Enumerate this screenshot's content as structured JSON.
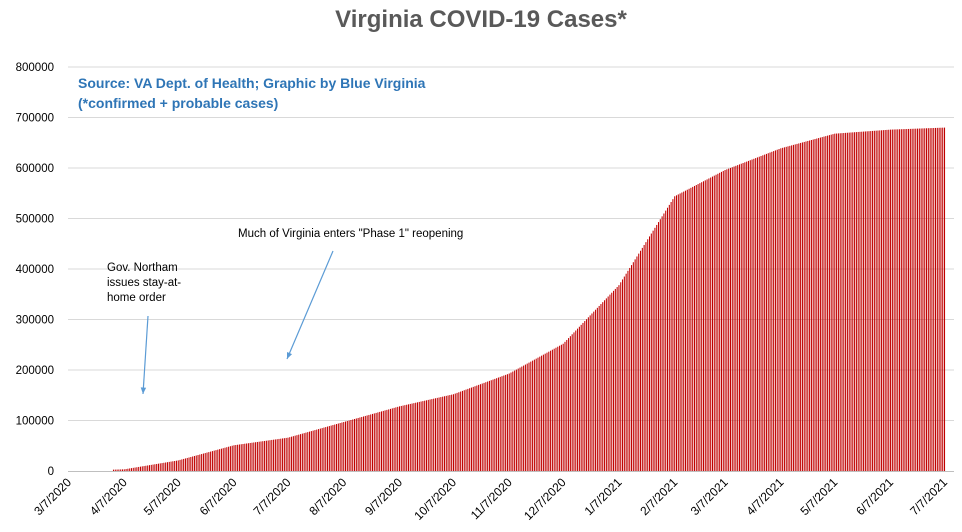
{
  "chart_data": {
    "type": "bar",
    "title": "Virginia COVID-19 Cases*",
    "source_line1": "Source: VA Dept. of Health; Graphic by Blue Virginia",
    "source_line2": "(*confirmed + probable cases)",
    "annotations": {
      "stay_at_home": [
        "Gov. Northam",
        "issues stay-at-",
        "home order"
      ],
      "phase1": "Much of Virginia enters \"Phase 1\" reopening"
    },
    "colors": {
      "bars": "#c00000",
      "title": "#595959",
      "source": "#2e75b6",
      "arrow": "#5b9bd5",
      "grid": "#d9d9d9"
    },
    "x_tick_labels": [
      "3/7/2020",
      "4/7/2020",
      "5/7/2020",
      "6/7/2020",
      "7/7/2020",
      "8/7/2020",
      "9/7/2020",
      "10/7/2020",
      "11/7/2020",
      "12/7/2020",
      "1/7/2021",
      "2/7/2021",
      "3/7/2021",
      "4/7/2021",
      "5/7/2021",
      "6/7/2021",
      "7/7/2021"
    ],
    "y_ticks": [
      0,
      100000,
      200000,
      300000,
      400000,
      500000,
      600000,
      700000,
      800000
    ],
    "ylim": [
      0,
      800000
    ],
    "x": [
      "3/7/2020",
      "4/7/2020",
      "5/7/2020",
      "6/7/2020",
      "7/7/2020",
      "8/7/2020",
      "9/7/2020",
      "10/7/2020",
      "11/7/2020",
      "12/7/2020",
      "1/7/2021",
      "2/7/2021",
      "3/7/2021",
      "4/7/2021",
      "5/7/2021",
      "6/7/2021",
      "7/7/2021"
    ],
    "values": [
      0,
      3300,
      21000,
      51000,
      66000,
      97000,
      128000,
      152000,
      193000,
      252000,
      368000,
      544000,
      596000,
      639000,
      668000,
      676000,
      680000
    ],
    "grid": true
  }
}
